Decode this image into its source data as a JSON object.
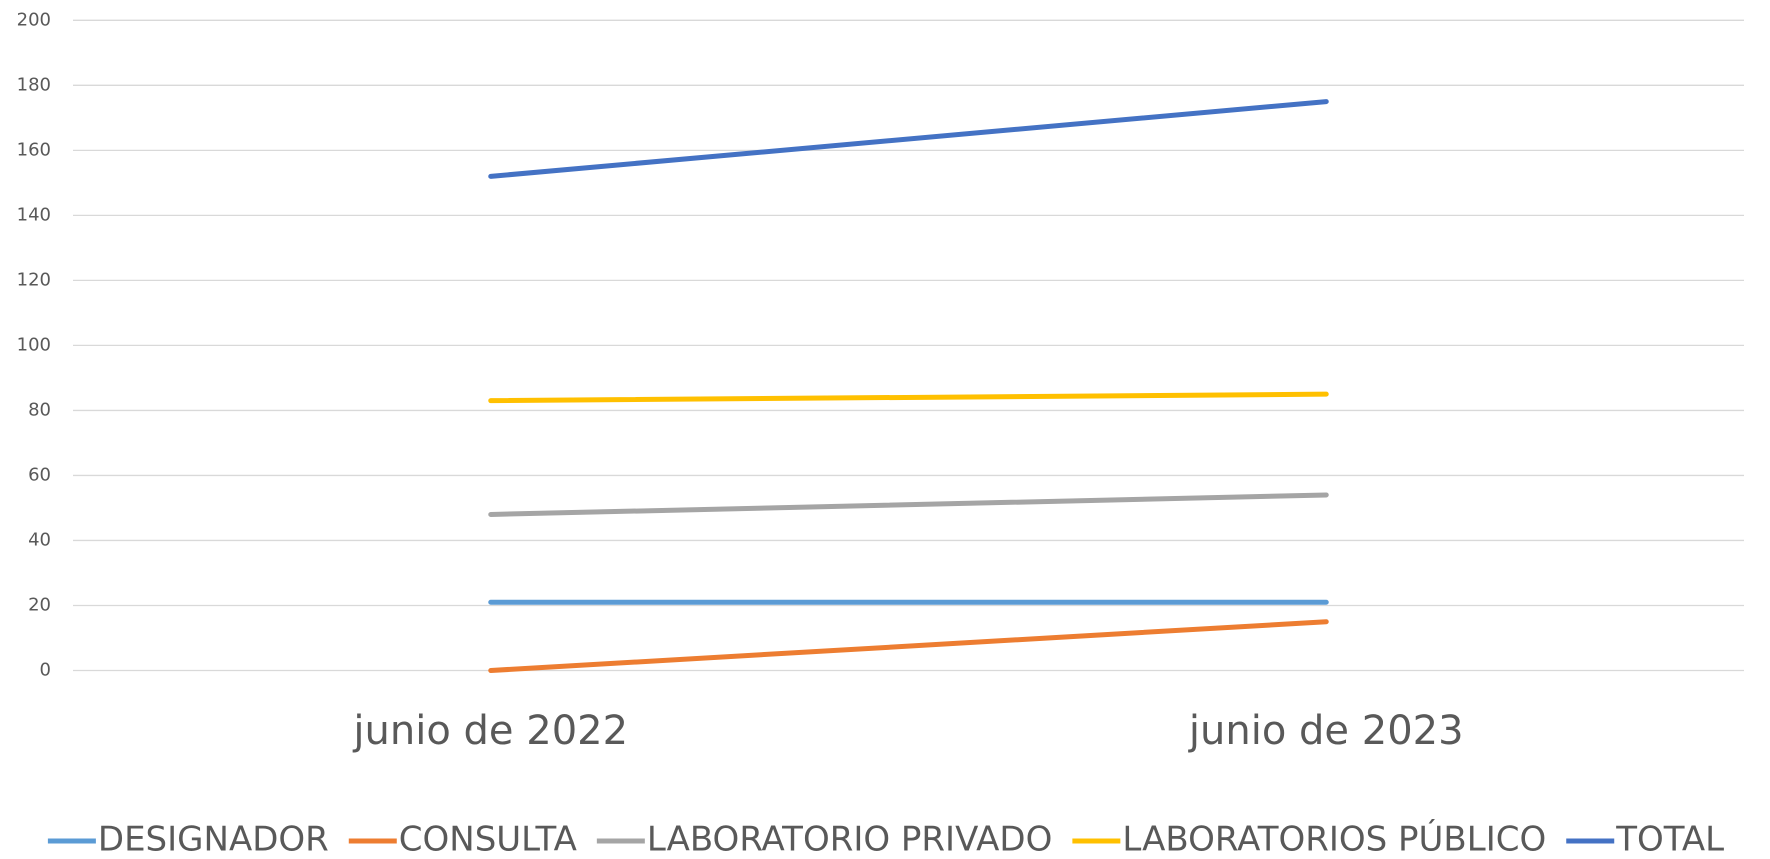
{
  "chart_data": {
    "type": "line",
    "categories": [
      "junio de 2022",
      "junio de 2023"
    ],
    "series": [
      {
        "name": "DESIGNADOR",
        "color": "#5b9bd5",
        "values": [
          21,
          21
        ]
      },
      {
        "name": "CONSULTA",
        "color": "#ed7d31",
        "values": [
          0,
          15
        ]
      },
      {
        "name": "LABORATORIO PRIVADO",
        "color": "#a5a5a5",
        "values": [
          48,
          54
        ]
      },
      {
        "name": "LABORATORIOS PÚBLICO",
        "color": "#ffc000",
        "values": [
          83,
          85
        ]
      },
      {
        "name": "TOTAL",
        "color": "#4472c4",
        "values": [
          152,
          175
        ]
      }
    ],
    "ylim": [
      0,
      200
    ],
    "yticks": [
      0,
      20,
      40,
      60,
      80,
      100,
      120,
      140,
      160,
      180,
      200
    ],
    "grid": true,
    "legend": "bottom"
  }
}
